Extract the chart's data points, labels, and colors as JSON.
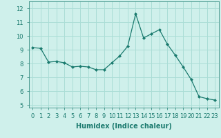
{
  "x": [
    0,
    1,
    2,
    3,
    4,
    5,
    6,
    7,
    8,
    9,
    10,
    11,
    12,
    13,
    14,
    15,
    16,
    17,
    18,
    19,
    20,
    21,
    22,
    23
  ],
  "y": [
    9.15,
    9.1,
    8.1,
    8.15,
    8.05,
    7.75,
    7.8,
    7.75,
    7.55,
    7.55,
    8.05,
    8.55,
    9.25,
    11.6,
    9.85,
    10.15,
    10.45,
    9.4,
    8.6,
    7.75,
    6.85,
    5.6,
    5.45,
    5.35
  ],
  "line_color": "#1a7a6e",
  "marker": "D",
  "marker_size": 2.0,
  "bg_color": "#cff0eb",
  "grid_color": "#aaddd6",
  "xlabel": "Humidex (Indice chaleur)",
  "xlabel_fontsize": 7,
  "tick_fontsize": 6,
  "ylim": [
    4.8,
    12.5
  ],
  "yticks": [
    5,
    6,
    7,
    8,
    9,
    10,
    11,
    12
  ],
  "xlim": [
    -0.5,
    23.5
  ]
}
